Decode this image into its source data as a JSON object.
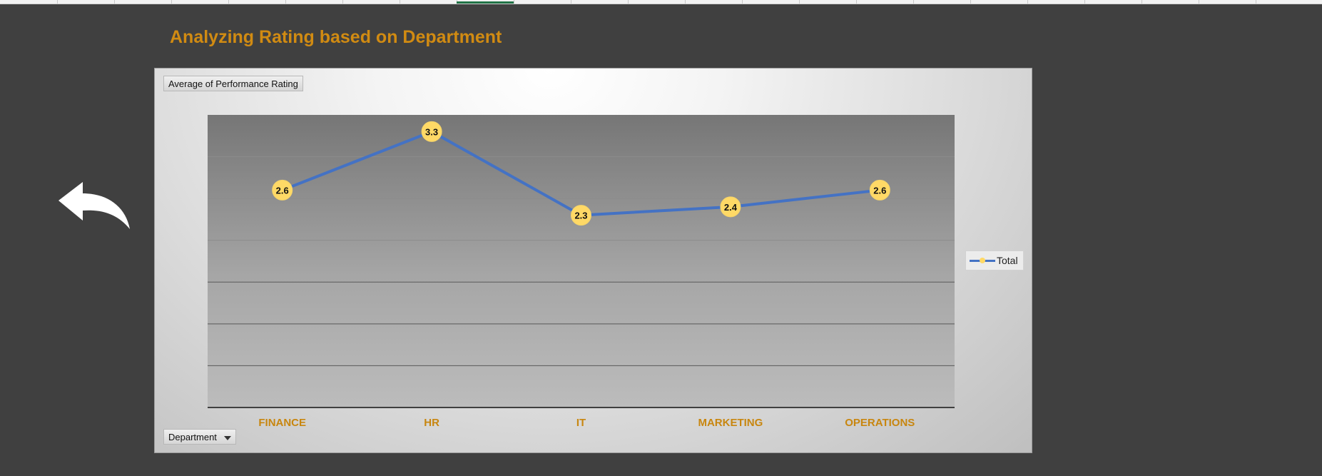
{
  "page": {
    "title": "Analyzing Rating based on Department",
    "back_icon": "back-arrow-icon"
  },
  "pivot": {
    "value_field": "Average of Performance Rating",
    "axis_field": "Department"
  },
  "colors": {
    "background": "#404040",
    "title": "#d18b12",
    "category_label": "#c8860f",
    "series_line": "#4472c4",
    "marker": "#ffd966"
  },
  "chart_data": {
    "type": "line",
    "categories": [
      "FINANCE",
      "HR",
      "IT",
      "MARKETING",
      "OPERATIONS"
    ],
    "series": [
      {
        "name": "Total",
        "values": [
          2.6,
          3.3,
          2.3,
          2.4,
          2.6
        ]
      }
    ],
    "data_labels": [
      "2.6",
      "3.3",
      "2.3",
      "2.4",
      "2.6"
    ],
    "ylim": [
      0,
      3.5
    ],
    "y_gridline_step": 0.5,
    "grid": true,
    "legend": "right"
  }
}
